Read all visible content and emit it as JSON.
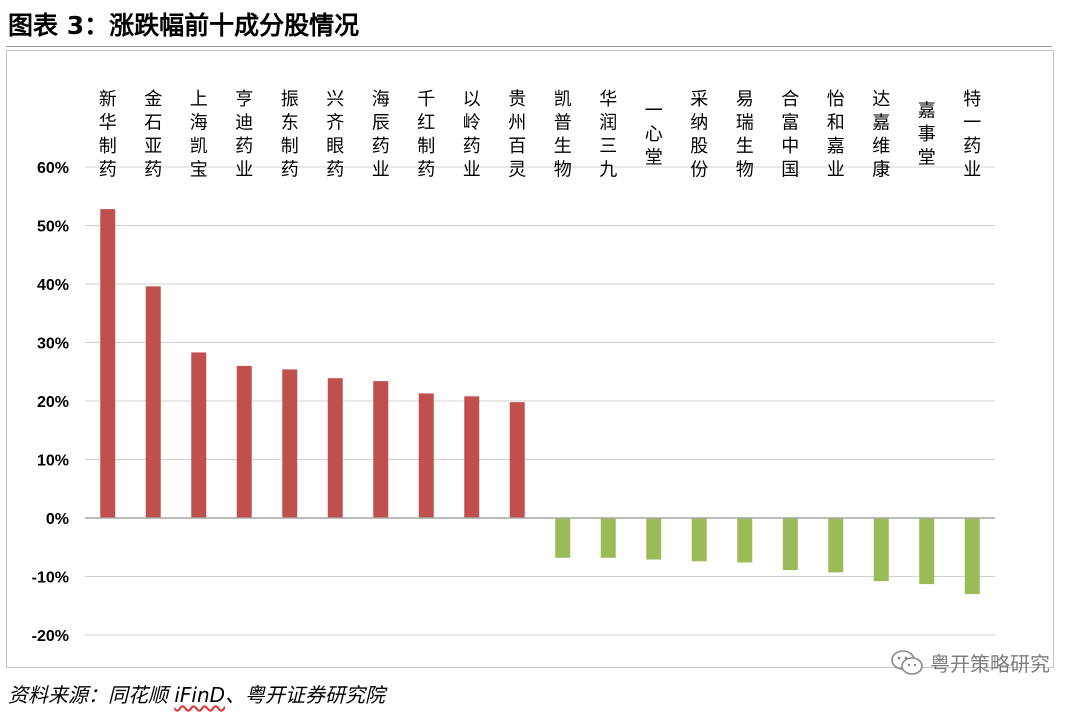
{
  "figure": {
    "title": "图表 3：涨跌幅前十成分股情况",
    "source_prefix": "资料来源：同花顺 ",
    "source_brand": "iFinD",
    "source_suffix": "、粤开证券研究院",
    "watermark": "粤开策略研究",
    "watermark_icon": "wechat-icon"
  },
  "chart_data": {
    "type": "bar",
    "title": "",
    "xlabel": "",
    "ylabel": "",
    "categories": [
      "新华制药",
      "金石亚药",
      "上海凯宝",
      "亨迪药业",
      "振东制药",
      "兴齐眼药",
      "海辰药业",
      "千红制药",
      "以岭药业",
      "贵州百灵",
      "凯普生物",
      "华润三九",
      "一心堂",
      "采纳股份",
      "易瑞生物",
      "合富中国",
      "怡和嘉业",
      "达嘉维康",
      "嘉事堂",
      "特一药业"
    ],
    "values": [
      52.8,
      39.6,
      28.3,
      26.0,
      25.4,
      23.9,
      23.4,
      21.3,
      20.8,
      19.8,
      -6.8,
      -6.8,
      -7.1,
      -7.4,
      -7.6,
      -8.9,
      -9.3,
      -10.8,
      -11.3,
      -13.0
    ],
    "ylim": [
      -20,
      60
    ],
    "yticks": [
      60,
      50,
      40,
      30,
      20,
      10,
      0,
      -10,
      -20
    ],
    "tick_suffix": "%",
    "grid": true,
    "legend": "none",
    "colors": {
      "positive": "#c0504d",
      "negative": "#9bbb59",
      "grid": "#d0d0d0",
      "axis": "#a6a6a6"
    }
  }
}
